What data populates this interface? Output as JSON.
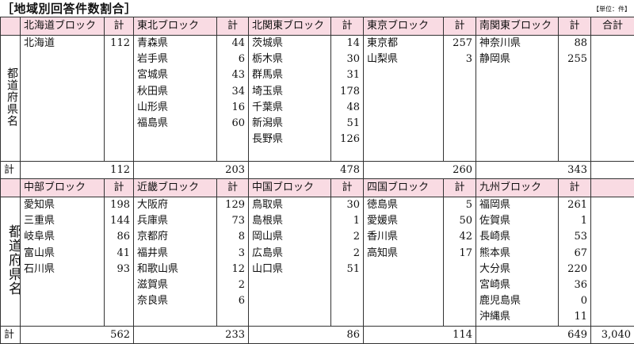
{
  "title": "［地域別回答件数割合］",
  "unit": "【単位：件】",
  "pref_label": "都道府県名",
  "total_label": "計",
  "count_header": "計",
  "grand_total_header": "合計",
  "grand_total": "3,040",
  "top_blocks": [
    {
      "name": "北海道ブロック",
      "total": "112",
      "prefs": [
        "北海道"
      ],
      "counts": [
        "112"
      ]
    },
    {
      "name": "東北ブロック",
      "total": "203",
      "prefs": [
        "青森県",
        "岩手県",
        "宮城県",
        "秋田県",
        "山形県",
        "福島県"
      ],
      "counts": [
        "44",
        "6",
        "43",
        "34",
        "16",
        "60"
      ]
    },
    {
      "name": "北関東ブロック",
      "total": "478",
      "prefs": [
        "茨城県",
        "栃木県",
        "群馬県",
        "埼玉県",
        "千葉県",
        "新潟県",
        "長野県"
      ],
      "counts": [
        "14",
        "30",
        "31",
        "178",
        "48",
        "51",
        "126"
      ]
    },
    {
      "name": "東京ブロック",
      "total": "260",
      "prefs": [
        "東京都",
        "山梨県"
      ],
      "counts": [
        "257",
        "3"
      ]
    },
    {
      "name": "南関東ブロック",
      "total": "343",
      "prefs": [
        "神奈川県",
        "静岡県"
      ],
      "counts": [
        "88",
        "255"
      ]
    }
  ],
  "bottom_blocks": [
    {
      "name": "中部ブロック",
      "total": "562",
      "prefs": [
        "愛知県",
        "三重県",
        "岐阜県",
        "富山県",
        "石川県"
      ],
      "counts": [
        "198",
        "144",
        "86",
        "41",
        "93"
      ]
    },
    {
      "name": "近畿ブロック",
      "total": "233",
      "prefs": [
        "大阪府",
        "兵庫県",
        "京都府",
        "福井県",
        "和歌山県",
        "滋賀県",
        "奈良県"
      ],
      "counts": [
        "129",
        "73",
        "8",
        "3",
        "12",
        "2",
        "6"
      ]
    },
    {
      "name": "中国ブロック",
      "total": "86",
      "prefs": [
        "鳥取県",
        "島根県",
        "岡山県",
        "広島県",
        "山口県"
      ],
      "counts": [
        "30",
        "1",
        "2",
        "2",
        "51"
      ]
    },
    {
      "name": "四国ブロック",
      "total": "114",
      "prefs": [
        "徳島県",
        "愛媛県",
        "香川県",
        "高知県"
      ],
      "counts": [
        "5",
        "50",
        "42",
        "17"
      ]
    },
    {
      "name": "九州ブロック",
      "total": "649",
      "prefs": [
        "福岡県",
        "佐賀県",
        "長崎県",
        "熊本県",
        "大分県",
        "宮崎県",
        "鹿児島県",
        "沖縄県"
      ],
      "counts": [
        "261",
        "1",
        "53",
        "67",
        "220",
        "36",
        "0",
        "11"
      ]
    }
  ]
}
